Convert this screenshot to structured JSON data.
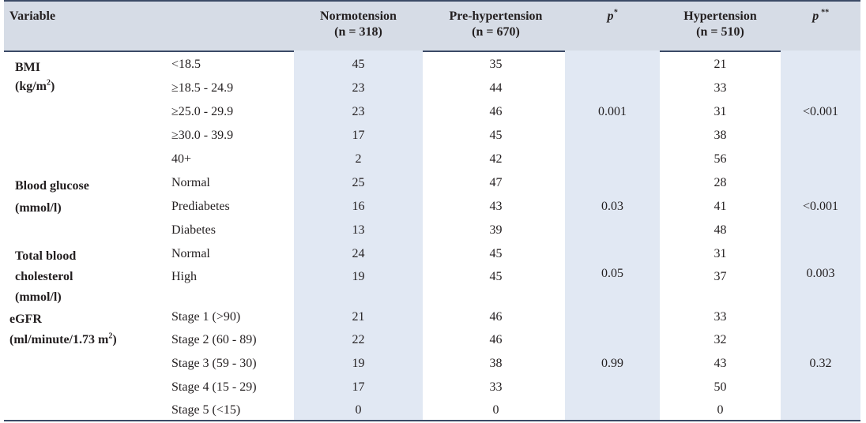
{
  "header": {
    "variable": "Variable",
    "normo": "Normotension",
    "normo_n": "(n = 318)",
    "pre": "Pre-hypertension",
    "pre_n": "(n = 670)",
    "p1": "p",
    "p1_mark": "*",
    "hyper": "Hypertension",
    "hyper_n": "(n = 510)",
    "p2": "p",
    "p2_mark": " **"
  },
  "groups": [
    {
      "label": [
        "BMI",
        "(kg/m",
        "2",
        ")"
      ],
      "p1": "0.001",
      "p2": "<0.001",
      "rows": [
        {
          "cat": "<18.5",
          "normo": "45",
          "pre": "35",
          "hyper": "21"
        },
        {
          "cat": "≥18.5 - 24.9",
          "normo": "23",
          "pre": "44",
          "hyper": "33"
        },
        {
          "cat": "≥25.0 - 29.9",
          "normo": "23",
          "pre": "46",
          "hyper": "31"
        },
        {
          "cat": "≥30.0 - 39.9",
          "normo": "17",
          "pre": "45",
          "hyper": "38"
        },
        {
          "cat": "40+",
          "normo": "2",
          "pre": "42",
          "hyper": "56"
        }
      ]
    },
    {
      "label": [
        "Blood glucose",
        "(mmol/l)"
      ],
      "p1": "0.03",
      "p2": "<0.001",
      "rows": [
        {
          "cat": "Normal",
          "normo": "25",
          "pre": "47",
          "hyper": "28"
        },
        {
          "cat": "Prediabetes",
          "normo": "16",
          "pre": "43",
          "hyper": "41"
        },
        {
          "cat": "Diabetes",
          "normo": "13",
          "pre": "39",
          "hyper": "48"
        }
      ]
    },
    {
      "label": [
        "Total blood",
        "cholesterol",
        "(mmol/l)"
      ],
      "p1": "0.05",
      "p2": "0.003",
      "rows": [
        {
          "cat": "Normal",
          "normo": "24",
          "pre": "45",
          "hyper": "31"
        },
        {
          "cat": "High",
          "normo": "19",
          "pre": "45",
          "hyper": "37"
        }
      ]
    },
    {
      "label": [
        "eGFR",
        "(ml/minute/1.73 m",
        "2",
        ")"
      ],
      "p1": "0.99",
      "p2": "0.32",
      "rows": [
        {
          "cat": "Stage 1 (>90)",
          "normo": "21",
          "pre": "46",
          "hyper": "33"
        },
        {
          "cat": "Stage 2 (60 - 89)",
          "normo": "22",
          "pre": "46",
          "hyper": "32"
        },
        {
          "cat": "Stage 3 (59 - 30)",
          "normo": "19",
          "pre": "38",
          "hyper": "43"
        },
        {
          "cat": "Stage 4 (15 - 29)",
          "normo": "17",
          "pre": "33",
          "hyper": "50"
        },
        {
          "cat": "Stage 5 (<15)",
          "normo": "0",
          "pre": "0",
          "hyper": "0"
        }
      ]
    }
  ],
  "colors": {
    "header_bg": "#d6dce6",
    "shaded_column": "#e1e8f3",
    "rule": "#3b4a66",
    "text": "#231f20"
  }
}
